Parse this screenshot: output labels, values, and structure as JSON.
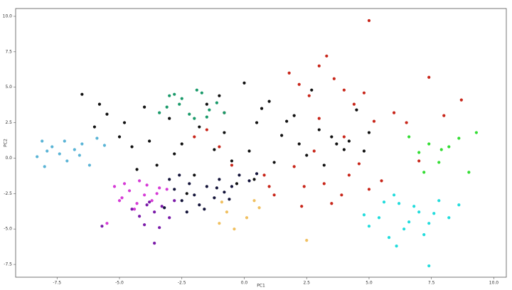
{
  "chart_data": {
    "type": "scatter",
    "x_label": "PC1",
    "y_label": "PC2",
    "xlim": [
      -9.16,
      10.5
    ],
    "ylim": [
      -8.4,
      10.55
    ],
    "xticks": [
      -7.5,
      {
        "value": -5,
        "label": "-5.0"
      },
      -2.5,
      {
        "value": 0,
        "label": "0.0"
      },
      2.5,
      {
        "value": 5,
        "label": "5.0"
      },
      7.5,
      {
        "value": 10,
        "label": "10.0"
      }
    ],
    "yticks": [
      -7.5,
      {
        "value": -5,
        "label": "-5.0"
      },
      -2.5,
      {
        "value": 0,
        "label": "0.0"
      },
      2.5,
      {
        "value": 5,
        "label": "5.0"
      },
      7.5,
      {
        "value": 10,
        "label": "10.0"
      }
    ],
    "series": [
      {
        "color": "#111111",
        "x": [
          -6.5,
          -6,
          -5.5,
          -5,
          -4.5,
          -4,
          -3.5,
          -3,
          -2.5,
          -2,
          -1.5,
          -1,
          -0.5,
          0,
          0.5,
          1,
          1.5,
          2,
          2.5,
          3,
          3.5,
          4,
          4.5,
          5,
          -5.8,
          -4.8,
          -3.8,
          -2.8,
          -1.8,
          -0.8,
          0.2,
          1.2,
          2.2,
          3.2,
          4.2,
          -1.2,
          0.7,
          1.7,
          2.7,
          3.7,
          -0.3,
          -2.3,
          -4.3,
          4.8,
          0.4
        ],
        "values": [
          4.5,
          2.2,
          3.1,
          1.5,
          0.8,
          3.6,
          -0.5,
          2.8,
          1.0,
          -1.2,
          3.8,
          4.4,
          -0.2,
          5.3,
          2.5,
          4.0,
          1.6,
          3.0,
          0.2,
          2.0,
          1.5,
          0.6,
          3.4,
          1.8,
          3.8,
          2.5,
          1.2,
          0.3,
          2.2,
          1.8,
          0.5,
          -0.3,
          1.0,
          -0.5,
          1.2,
          0.6,
          3.5,
          2.6,
          4.8,
          1.0,
          -1.8,
          -2.5,
          -0.8,
          0.5,
          -1.5
        ]
      },
      {
        "color": "#14143a",
        "x": [
          -3.2,
          -2.8,
          -2.5,
          -2.2,
          -2.0,
          -1.8,
          -1.5,
          -1.2,
          -1.0,
          -0.8,
          -0.5,
          -0.2,
          0.2,
          0.5,
          -2.6,
          -1.6,
          -0.6,
          -3.0,
          -2.3,
          -1.1
        ],
        "values": [
          -3.5,
          -2.2,
          -3.0,
          -1.8,
          -2.6,
          -3.3,
          -2.0,
          -2.8,
          -1.5,
          -2.4,
          -2.0,
          -1.2,
          -1.6,
          -1.1,
          -1.2,
          -3.6,
          -2.9,
          -1.5,
          -3.8,
          -2.1
        ]
      },
      {
        "color": "#c8261a",
        "x": [
          1.8,
          2.2,
          2.6,
          3.0,
          3.3,
          3.6,
          4.0,
          4.4,
          4.8,
          5.2,
          2.4,
          3.5,
          4.2,
          5.5,
          6.0,
          7.4,
          8.0,
          8.7,
          -1.5,
          -1.0,
          -0.5,
          -2.0,
          0.8,
          1.2,
          2.0,
          2.8,
          3.2,
          3.9,
          4.6,
          5.0,
          6.5,
          7.0,
          1.0,
          2.3,
          4.0,
          5.0,
          -0.8,
          3.0
        ],
        "values": [
          6.0,
          5.2,
          4.4,
          6.5,
          7.2,
          5.6,
          4.8,
          3.8,
          4.6,
          2.6,
          -2.0,
          -3.2,
          -1.2,
          -1.6,
          3.2,
          5.7,
          3.0,
          4.1,
          2.0,
          0.8,
          -0.5,
          1.5,
          -1.2,
          -2.6,
          -0.6,
          0.5,
          -1.8,
          -2.6,
          -0.4,
          9.7,
          2.5,
          -0.2,
          -2.0,
          -3.4,
          1.5,
          -2.2,
          3.2,
          2.8
        ]
      },
      {
        "color": "#1a9a6a",
        "x": [
          -3.4,
          -3.1,
          -2.8,
          -2.5,
          -2.2,
          -2.0,
          -1.7,
          -1.4,
          -1.1,
          -0.8,
          -2.6,
          -1.9,
          -1.5,
          -3.0
        ],
        "values": [
          3.2,
          3.6,
          4.5,
          4.2,
          3.1,
          2.8,
          4.6,
          3.4,
          3.9,
          3.2,
          3.8,
          4.8,
          2.9,
          4.4
        ]
      },
      {
        "color": "#5ab4d6",
        "x": [
          -8.3,
          -8.0,
          -7.7,
          -7.4,
          -7.1,
          -6.8,
          -6.5,
          -6.2,
          -5.9,
          -7.9,
          -7.2,
          -6.6,
          -5.6,
          -8.1
        ],
        "values": [
          0.1,
          -0.6,
          0.8,
          0.3,
          -0.2,
          0.6,
          1.0,
          -0.5,
          1.4,
          0.5,
          1.2,
          0.2,
          0.9,
          1.2
        ]
      },
      {
        "color": "#d63ad6",
        "x": [
          -5.2,
          -4.9,
          -4.6,
          -4.3,
          -4.0,
          -3.7,
          -3.4,
          -4.8,
          -4.4,
          -3.9,
          -3.5,
          -5.0,
          -4.2,
          -3.1,
          -5.5
        ],
        "values": [
          -2.0,
          -2.8,
          -2.3,
          -3.2,
          -2.6,
          -3.0,
          -2.1,
          -1.8,
          -3.6,
          -1.9,
          -2.5,
          -3.0,
          -1.6,
          -2.2,
          -4.6
        ]
      },
      {
        "color": "#7a1aa8",
        "x": [
          -4.5,
          -4.2,
          -3.9,
          -3.6,
          -3.3,
          -3.0,
          -2.8,
          -4.0,
          -3.4,
          -3.8,
          -5.7,
          -3.6
        ],
        "values": [
          -3.6,
          -4.1,
          -3.3,
          -3.8,
          -3.4,
          -4.2,
          -3.0,
          -4.7,
          -4.9,
          -3.1,
          -4.8,
          -6.0
        ]
      },
      {
        "color": "#22dcdc",
        "x": [
          5.0,
          5.4,
          5.8,
          6.2,
          6.6,
          7.0,
          7.4,
          7.8,
          8.2,
          6.0,
          6.8,
          7.2,
          7.6,
          5.6,
          6.4,
          7.4,
          8.6,
          4.8,
          6.1
        ],
        "values": [
          -4.8,
          -4.2,
          -5.6,
          -3.2,
          -4.5,
          -3.8,
          -4.6,
          -3.0,
          -4.2,
          -2.6,
          -3.4,
          -5.4,
          -3.9,
          -3.1,
          -5.0,
          -7.6,
          -3.3,
          -4.0,
          -6.2
        ]
      },
      {
        "color": "#33dd33",
        "x": [
          6.6,
          7.0,
          7.4,
          7.8,
          8.2,
          8.6,
          7.2,
          7.9,
          9.3,
          9.0
        ],
        "values": [
          1.5,
          0.4,
          1.0,
          -0.3,
          0.8,
          1.4,
          -1.0,
          0.6,
          1.8,
          -1.0
        ]
      },
      {
        "color": "#f0c060",
        "x": [
          -1.0,
          -0.7,
          -0.4,
          0.1,
          0.6,
          -0.9,
          2.5,
          0.4
        ],
        "values": [
          -4.6,
          -3.8,
          -5.0,
          -4.2,
          -3.5,
          -3.1,
          -5.8,
          -3.0
        ]
      }
    ]
  }
}
